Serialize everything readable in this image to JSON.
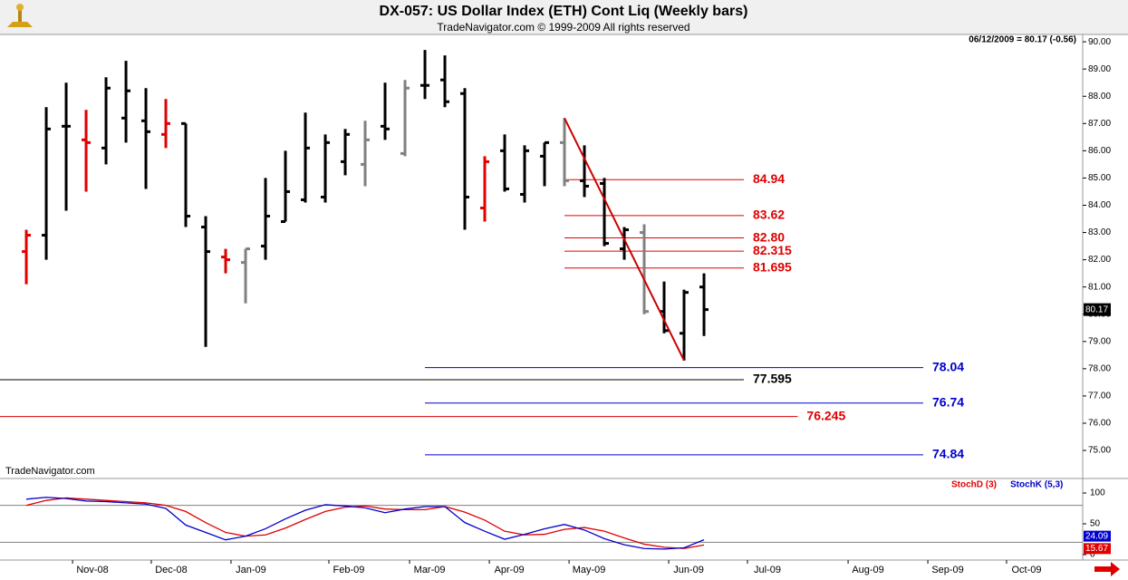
{
  "header": {
    "quote": "06/12/2009 = 80.17 (-0.56)",
    "watermark": "TradeNavigator.com"
  },
  "chart_data": [
    {
      "type": "ohlc",
      "title": "DX-057:  US Dollar Index (ETH) Cont Liq  (Weekly bars)",
      "subtitle": "TradeNavigator.com © 1999-2009 All rights reserved",
      "x": [
        0,
        1,
        2,
        3,
        4,
        5,
        6,
        7,
        8,
        9,
        10,
        11,
        12,
        13,
        14,
        15,
        16,
        17,
        18,
        19,
        20,
        21,
        22,
        23,
        24,
        25,
        26,
        27,
        28,
        29,
        30,
        31,
        32,
        33,
        34
      ],
      "open": [
        82.3,
        82.9,
        86.9,
        86.4,
        86.1,
        87.2,
        87.1,
        86.6,
        87.0,
        83.2,
        82.1,
        81.9,
        82.5,
        83.4,
        84.2,
        84.3,
        85.6,
        85.5,
        86.9,
        85.9,
        88.4,
        88.6,
        88.1,
        83.9,
        86.0,
        84.4,
        85.8,
        86.3,
        84.9,
        84.8,
        82.4,
        83.0,
        80.1,
        79.3,
        81.0
      ],
      "high": [
        83.1,
        87.6,
        88.5,
        87.5,
        88.7,
        89.3,
        88.3,
        87.9,
        87.0,
        83.6,
        82.4,
        82.4,
        85.0,
        86.0,
        87.4,
        86.6,
        86.8,
        87.1,
        88.5,
        88.6,
        89.7,
        89.5,
        88.3,
        85.8,
        86.6,
        86.2,
        86.3,
        87.2,
        86.2,
        85.0,
        83.2,
        83.3,
        81.2,
        80.9,
        81.5
      ],
      "low": [
        81.1,
        82.0,
        83.8,
        84.5,
        85.5,
        86.3,
        84.6,
        86.1,
        83.2,
        78.8,
        81.5,
        80.4,
        82.0,
        83.4,
        84.1,
        84.1,
        85.1,
        84.7,
        86.4,
        85.8,
        87.9,
        87.6,
        83.1,
        83.4,
        84.5,
        84.1,
        84.7,
        84.7,
        84.3,
        82.5,
        82.0,
        80.0,
        79.3,
        78.3,
        79.2
      ],
      "close": [
        82.9,
        86.8,
        86.9,
        86.3,
        88.3,
        88.2,
        86.7,
        87.0,
        83.6,
        82.3,
        82.0,
        82.4,
        83.6,
        84.5,
        86.1,
        86.3,
        86.6,
        86.4,
        86.8,
        88.3,
        88.4,
        87.8,
        84.3,
        85.6,
        84.6,
        86.0,
        86.3,
        84.9,
        84.7,
        82.6,
        83.1,
        80.1,
        79.4,
        80.8,
        80.17
      ],
      "colors": [
        "#e00000",
        "#000000",
        "#000000",
        "#e00000",
        "#000000",
        "#000000",
        "#000000",
        "#e00000",
        "#000000",
        "#000000",
        "#e00000",
        "#808080",
        "#000000",
        "#000000",
        "#000000",
        "#000000",
        "#000000",
        "#808080",
        "#000000",
        "#808080",
        "#000000",
        "#000000",
        "#000000",
        "#e00000",
        "#000000",
        "#000000",
        "#000000",
        "#808080",
        "#000000",
        "#000000",
        "#000000",
        "#808080",
        "#000000",
        "#000000",
        "#000000"
      ],
      "xlim": [
        -1.32,
        53.0
      ],
      "ylim": [
        73.97,
        90.27
      ],
      "yticks": [
        {
          "value": 75,
          "label": "75.00"
        },
        {
          "value": 76,
          "label": "76.00"
        },
        {
          "value": 77,
          "label": "77.00"
        },
        {
          "value": 78,
          "label": "78.00"
        },
        {
          "value": 79,
          "label": "79.00"
        },
        {
          "value": 80,
          "label": "80.00"
        },
        {
          "value": 81,
          "label": "81.00"
        },
        {
          "value": 82,
          "label": "82.00"
        },
        {
          "value": 83,
          "label": "83.00"
        },
        {
          "value": 84,
          "label": "84.00"
        },
        {
          "value": 85,
          "label": "85.00"
        },
        {
          "value": 86,
          "label": "86.00"
        },
        {
          "value": 87,
          "label": "87.00"
        },
        {
          "value": 88,
          "label": "88.00"
        },
        {
          "value": 89,
          "label": "89.00"
        },
        {
          "value": 90,
          "label": "90.00"
        }
      ],
      "levels": [
        {
          "value": 84.94,
          "color": "#e00000",
          "from": 27,
          "to": 36
        },
        {
          "value": 83.62,
          "color": "#e00000",
          "from": 27,
          "to": 36
        },
        {
          "value": 82.8,
          "label": "82.80",
          "color": "#e00000",
          "from": 27,
          "to": 36
        },
        {
          "value": 82.315,
          "color": "#e00000",
          "from": 27,
          "to": 36
        },
        {
          "value": 81.695,
          "color": "#e00000",
          "from": 27,
          "to": 36
        },
        {
          "value": 78.04,
          "color": "#0000cc",
          "from": 20,
          "to": 45
        },
        {
          "value": 77.595,
          "color": "#000000",
          "from": -1.32,
          "to": 36
        },
        {
          "value": 76.74,
          "color": "#0000cc",
          "from": 20,
          "to": 45
        },
        {
          "value": 76.245,
          "color": "#e00000",
          "from": -1.32,
          "to": 38.7
        },
        {
          "value": 74.84,
          "color": "#0000cc",
          "from": 20,
          "to": 45
        }
      ],
      "trendline": {
        "x": [
          27,
          33
        ],
        "y": [
          87.2,
          78.3
        ],
        "color": "#cc0000"
      }
    },
    {
      "type": "line",
      "xlim": [
        -1.32,
        53.0
      ],
      "ylim": [
        -8.8,
        120.6
      ],
      "yticks": [
        0,
        50,
        100
      ],
      "reference_lines": [
        20,
        80
      ],
      "x": [
        0,
        1,
        2,
        3,
        4,
        5,
        6,
        7,
        8,
        9,
        10,
        11,
        12,
        13,
        14,
        15,
        16,
        17,
        18,
        19,
        20,
        21,
        22,
        23,
        24,
        25,
        26,
        27,
        28,
        29,
        30,
        31,
        32,
        33,
        34
      ],
      "series": [
        {
          "name": "StochD (3)",
          "color": "#e00000",
          "values": [
            80,
            88,
            92,
            90,
            88,
            86,
            84,
            80,
            70,
            52,
            36,
            30,
            32,
            43,
            57,
            70,
            77,
            79,
            74,
            73,
            73,
            78,
            69,
            56,
            38,
            32,
            33,
            41,
            44,
            38,
            27,
            17,
            12,
            10,
            15.67
          ]
        },
        {
          "name": "StochK (5,3)",
          "color": "#0000cc",
          "values": [
            90,
            93,
            91,
            87,
            86,
            84,
            82,
            75,
            48,
            36,
            24,
            30,
            42,
            58,
            72,
            81,
            79,
            76,
            68,
            74,
            78,
            78,
            52,
            38,
            25,
            33,
            42,
            49,
            40,
            26,
            16,
            10,
            9,
            11,
            24.09
          ]
        }
      ],
      "xticks": [
        {
          "value": 3.32,
          "label": "Nov-08"
        },
        {
          "value": 7.27,
          "label": "Dec-08"
        },
        {
          "value": 11.27,
          "label": "Jan-09"
        },
        {
          "value": 16.18,
          "label": "Feb-09"
        },
        {
          "value": 20.23,
          "label": "Mar-09"
        },
        {
          "value": 24.23,
          "label": "Apr-09"
        },
        {
          "value": 28.23,
          "label": "May-09"
        },
        {
          "value": 33.23,
          "label": "Jun-09"
        },
        {
          "value": 37.18,
          "label": "Jul-09"
        },
        {
          "value": 42.23,
          "label": "Aug-09"
        },
        {
          "value": 46.23,
          "label": "Sep-09"
        },
        {
          "value": 50.18,
          "label": "Oct-09"
        }
      ]
    }
  ]
}
